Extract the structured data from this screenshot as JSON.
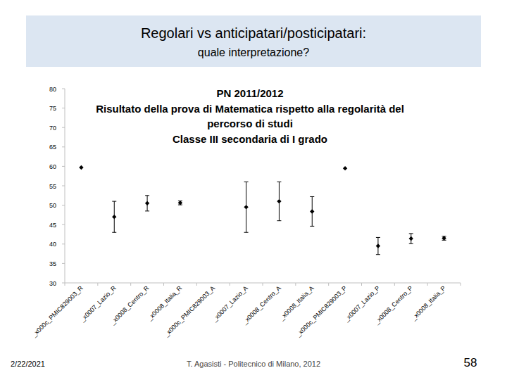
{
  "header": {
    "title": "Regolari vs anticipatari/posticipatari:",
    "subtitle": "quale interpretazione?"
  },
  "footer": {
    "date": "2/22/2021",
    "author": "T. Agasisti - Politecnico di Milano, 2012",
    "page": "58"
  },
  "chart_data": {
    "type": "scatter",
    "title": "PN 2011/2012\nRisultato della prova di Matematica rispetto alla regolarità del\npercorso di studi\nClasse III secondaria di I grado",
    "categories": [
      "_x000c_PMIC829003_R",
      "_x0007_Lazio_R",
      "_x0008_Centro_R",
      "_x0008_Italia_R",
      "_x000c_PMIC829003_A",
      "_x0007_Lazio_A",
      "_x0008_Centro_A",
      "_x0008_Italia_A",
      "_x000c_PMIC829003_P",
      "_x0007_Lazio_P",
      "_x0008_Centro_P",
      "_x0008_Italia_P"
    ],
    "values": [
      59.7,
      47,
      50.5,
      50.6,
      null,
      49.5,
      51,
      48.4,
      59.5,
      39.5,
      41.4,
      41.5
    ],
    "errors": [
      null,
      4,
      2,
      0.5,
      null,
      6.5,
      5,
      3.8,
      null,
      2.2,
      1.3,
      0.5
    ],
    "color": "#000000",
    "marker": "diamond",
    "ylim": [
      30,
      80
    ],
    "yticks": [
      30,
      35,
      40,
      45,
      50,
      55,
      60,
      65,
      70,
      75,
      80
    ],
    "grid": false
  }
}
